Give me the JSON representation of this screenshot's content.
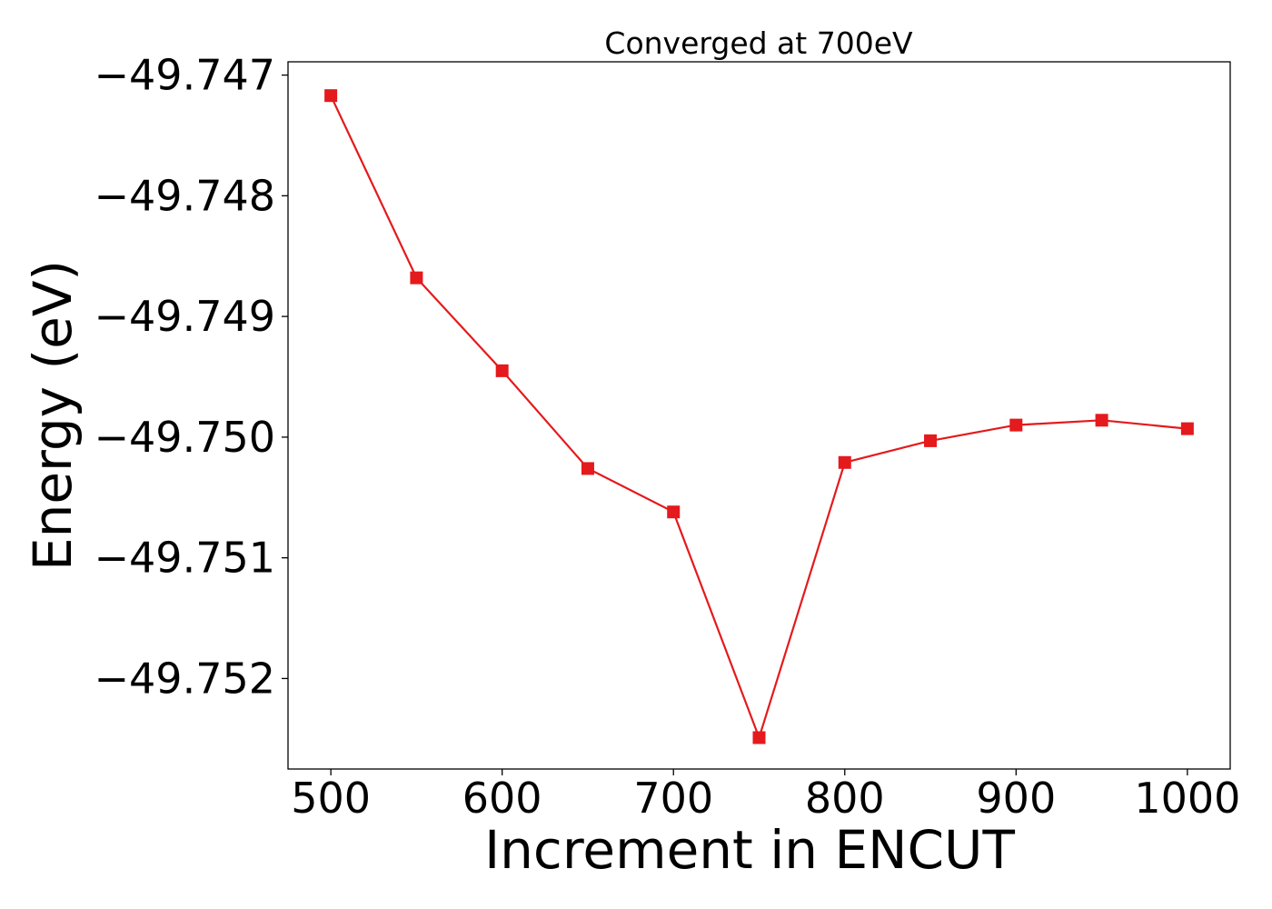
{
  "chart_data": {
    "type": "line",
    "title": "Converged at 700eV",
    "xlabel": "Increment in ENCUT",
    "ylabel": "Energy (eV)",
    "x": [
      500,
      550,
      600,
      650,
      700,
      750,
      800,
      850,
      900,
      950,
      1000
    ],
    "series": [
      {
        "values": [
          -49.74717,
          -49.74868,
          -49.74945,
          -49.75026,
          -49.75062,
          -49.75249,
          -49.75021,
          -49.75003,
          -49.7499,
          -49.74986,
          -49.74993
        ],
        "color": "#e41a1c",
        "marker": "square"
      }
    ],
    "xlim": [
      475,
      1025
    ],
    "ylim": [
      -49.75275,
      -49.74689
    ],
    "xticks": [
      500,
      600,
      700,
      800,
      900,
      1000
    ],
    "xtick_labels": [
      "500",
      "600",
      "700",
      "800",
      "900",
      "1000"
    ],
    "yticks": [
      -49.747,
      -49.748,
      -49.749,
      -49.75,
      -49.751,
      -49.752
    ],
    "ytick_labels": [
      "−49.747",
      "−49.748",
      "−49.749",
      "−49.750",
      "−49.751",
      "−49.752"
    ],
    "grid": false,
    "legend": "none"
  }
}
